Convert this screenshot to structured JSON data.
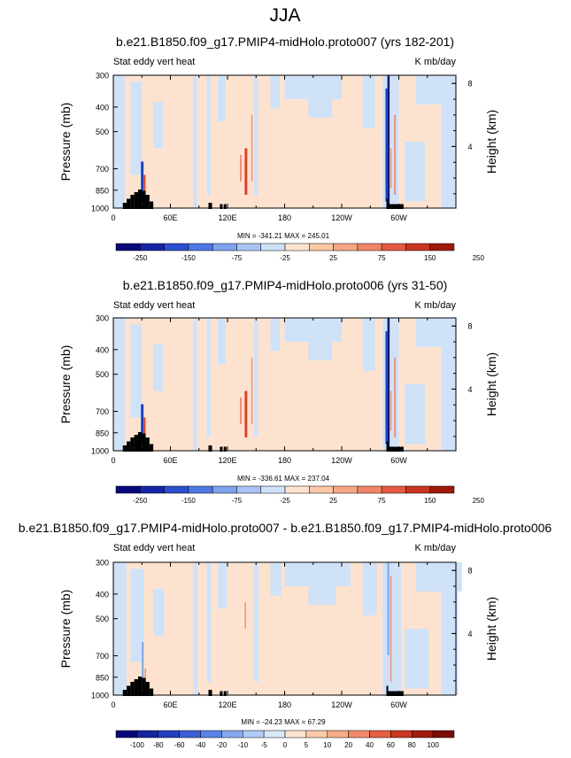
{
  "page_title": "JJA",
  "panels": [
    {
      "title": "b.e21.B1850.f09_g17.PMIP4-midHolo.proto007 (yrs 182-201)",
      "left_label": "Stat eddy vert heat",
      "right_label": "K mb/day",
      "stats": "MIN = -341.21   MAX = 245.01",
      "colorbar_labels": [
        "-250",
        "-150",
        "-75",
        "-25",
        "25",
        "75",
        "150",
        "250"
      ]
    },
    {
      "title": "b.e21.B1850.f09_g17.PMIP4-midHolo.proto006 (yrs 31-50)",
      "left_label": "Stat eddy vert heat",
      "right_label": "K mb/day",
      "stats": "MIN = -336.61   MAX = 237.04",
      "colorbar_labels": [
        "-250",
        "-150",
        "-75",
        "-25",
        "25",
        "75",
        "150",
        "250"
      ]
    },
    {
      "title": "b.e21.B1850.f09_g17.PMIP4-midHolo.proto007 - b.e21.B1850.f09_g17.PMIP4-midHolo.proto006",
      "left_label": "Stat eddy vert heat",
      "right_label": "K mb/day",
      "stats": "MIN = -24.23   MAX = 67.29",
      "colorbar_labels": [
        "-100",
        "-80",
        "-60",
        "-40",
        "-20",
        "-10",
        "-5",
        "0",
        "5",
        "10",
        "20",
        "40",
        "60",
        "80",
        "100"
      ]
    }
  ],
  "chart_data": {
    "type": "heatmap",
    "xlabel": "",
    "ylabel": "Pressure (mb)",
    "ylabel_right": "Height (km)",
    "x_ticks": [
      "0",
      "60E",
      "120E",
      "180",
      "120W",
      "60W"
    ],
    "y_ticks": [
      "300",
      "400",
      "500",
      "700",
      "850",
      "1000"
    ],
    "y_ticks_right": [
      "8",
      "4"
    ],
    "colors": {
      "pos_light": "#fde3cf",
      "neg_light": "#cfe2f8",
      "neg_mid": "#7ca5e8",
      "neg_strong": "#1f3fbf",
      "neg_extreme": "#0a1a6e",
      "pos_mid": "#f0907a",
      "pos_strong": "#d9432b",
      "terrain": "#000000",
      "colorbar_main": [
        "#08087a",
        "#1525a8",
        "#2b4fcf",
        "#4f78e3",
        "#7ea2ee",
        "#a9c4f4",
        "#cfe0f9",
        "#fde3cf",
        "#fbc7a7",
        "#f8a785",
        "#f18566",
        "#e45b42",
        "#c9351f",
        "#9e1a0c"
      ],
      "colorbar_diff": [
        "#08087a",
        "#13249c",
        "#233fbf",
        "#3a5fd7",
        "#5a82e5",
        "#86a8ef",
        "#b3cbf6",
        "#d9e7fb",
        "#fde3cf",
        "#fbcaa9",
        "#f8ab88",
        "#f28a69",
        "#e55f44",
        "#cc3720",
        "#a01b0b",
        "#7a0d05"
      ]
    }
  }
}
